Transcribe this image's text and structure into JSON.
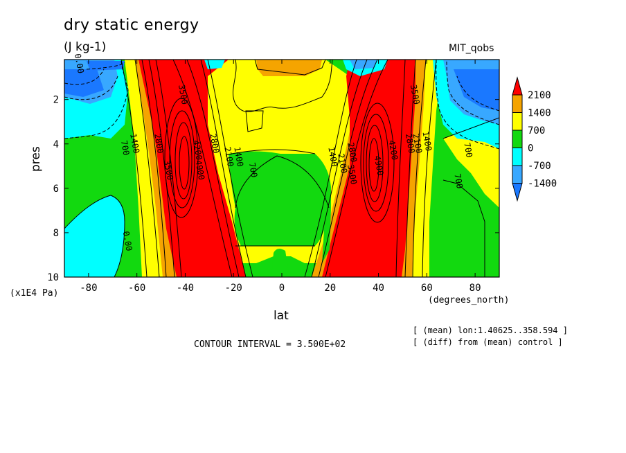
{
  "header": {
    "title": "dry static energy",
    "units": "(J kg-1)",
    "dataset": "MIT_qobs"
  },
  "footer": {
    "contour_interval": "CONTOUR INTERVAL = 3.500E+02",
    "note_mean": "[ (mean) lon:1.40625..358.594 ]",
    "note_diff": "[ (diff) from (mean) control ]"
  },
  "colors": {
    "level_lt_m1400": "#1a78ff",
    "level_m1400_m700": "#38a8ff",
    "level_m700_0": "#00ffff",
    "level_0_700": "#12d90f",
    "level_700_1400": "#ffff00",
    "level_1400_2100": "#f5a400",
    "level_gt_2100": "#ff0000"
  },
  "chart_data": {
    "type": "contour",
    "variable": "dry static energy",
    "title": "dry static energy",
    "units": "(J kg-1)",
    "xlabel": "lat",
    "xunits": "(degrees_north)",
    "ylabel": "pres",
    "yunits": "(x1E4 Pa)",
    "xlim": [
      -90,
      90
    ],
    "ylim": [
      10,
      0.2
    ],
    "x_ticks": [
      -80,
      -60,
      -40,
      -20,
      0,
      20,
      40,
      60,
      80
    ],
    "y_ticks": [
      2,
      4,
      6,
      8,
      10
    ],
    "contour_interval": 350,
    "legend": {
      "placement": "right",
      "levels": [
        -1400,
        -700,
        0,
        700,
        1400,
        2100
      ],
      "labels": [
        "2100",
        "1400",
        "700",
        "0",
        "-700",
        "-1400"
      ]
    },
    "contour_labels": [
      {
        "text": "0.00",
        "lat": -85,
        "pres": 0.4
      },
      {
        "text": "3500",
        "lat": -42,
        "pres": 1.8
      },
      {
        "text": "1400",
        "lat": -62,
        "pres": 4.0
      },
      {
        "text": "700",
        "lat": -66,
        "pres": 4.2
      },
      {
        "text": "2800",
        "lat": -52,
        "pres": 4.0
      },
      {
        "text": "3500",
        "lat": -48,
        "pres": 5.2
      },
      {
        "text": "4200",
        "lat": -36,
        "pres": 4.3
      },
      {
        "text": "4900",
        "lat": -35,
        "pres": 5.2
      },
      {
        "text": "2800",
        "lat": -29,
        "pres": 4.0
      },
      {
        "text": "2100",
        "lat": -23,
        "pres": 4.6
      },
      {
        "text": "1400",
        "lat": -19,
        "pres": 4.6
      },
      {
        "text": "700",
        "lat": -13,
        "pres": 5.2
      },
      {
        "text": "1400",
        "lat": 20,
        "pres": 4.6
      },
      {
        "text": "2100",
        "lat": 24,
        "pres": 4.9
      },
      {
        "text": "2800",
        "lat": 28,
        "pres": 4.4
      },
      {
        "text": "3500",
        "lat": 28,
        "pres": 5.4
      },
      {
        "text": "4900",
        "lat": 39,
        "pres": 5.0
      },
      {
        "text": "4200",
        "lat": 45,
        "pres": 4.3
      },
      {
        "text": "2800",
        "lat": 52,
        "pres": 4.0
      },
      {
        "text": "2100",
        "lat": 55,
        "pres": 4.0
      },
      {
        "text": "1400",
        "lat": 59,
        "pres": 3.9
      },
      {
        "text": "3500",
        "lat": 54,
        "pres": 1.8
      },
      {
        "text": "700",
        "lat": 76,
        "pres": 4.3
      },
      {
        "text": "700",
        "lat": 72,
        "pres": 5.7
      },
      {
        "text": "0.00",
        "lat": -65,
        "pres": 8.4
      }
    ]
  }
}
